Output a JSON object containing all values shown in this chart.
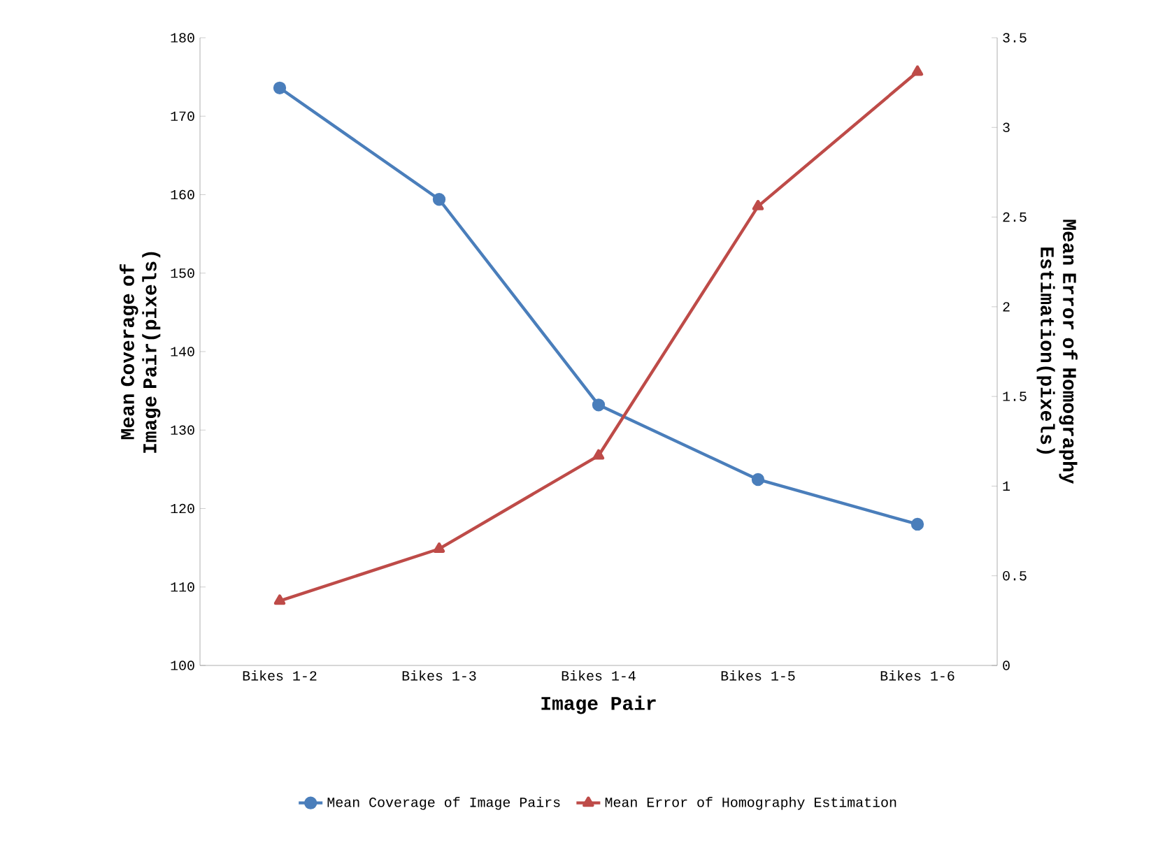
{
  "chart_data": {
    "type": "line",
    "xlabel": "Image Pair",
    "ylabel": "Mean Coverage of Image Pair(pixels)",
    "y2label": "Mean Error of Homography Estimation(pixels)",
    "categories": [
      "Bikes 1-2",
      "Bikes 1-3",
      "Bikes 1-4",
      "Bikes 1-5",
      "Bikes 1-6"
    ],
    "series": [
      {
        "name": "Mean Coverage of Image Pairs",
        "color": "#4a7ebb",
        "marker": "circle",
        "values": [
          173.6,
          159.4,
          133.2,
          123.7,
          118.0
        ]
      },
      {
        "name": "Mean Error of Homography Estimation",
        "color": "#be4b48",
        "marker": "triangle",
        "axis": "y2",
        "values": [
          0.36,
          0.65,
          1.17,
          2.56,
          3.31
        ]
      }
    ],
    "ylim": [
      100,
      180
    ],
    "yticks": [
      100,
      110,
      120,
      130,
      140,
      150,
      160,
      170,
      180
    ],
    "y2lim": [
      0,
      3.5
    ],
    "y2ticks": [
      0,
      0.5,
      1,
      1.5,
      2,
      2.5,
      3,
      3.5
    ],
    "grid": false,
    "legend": "bottom"
  }
}
